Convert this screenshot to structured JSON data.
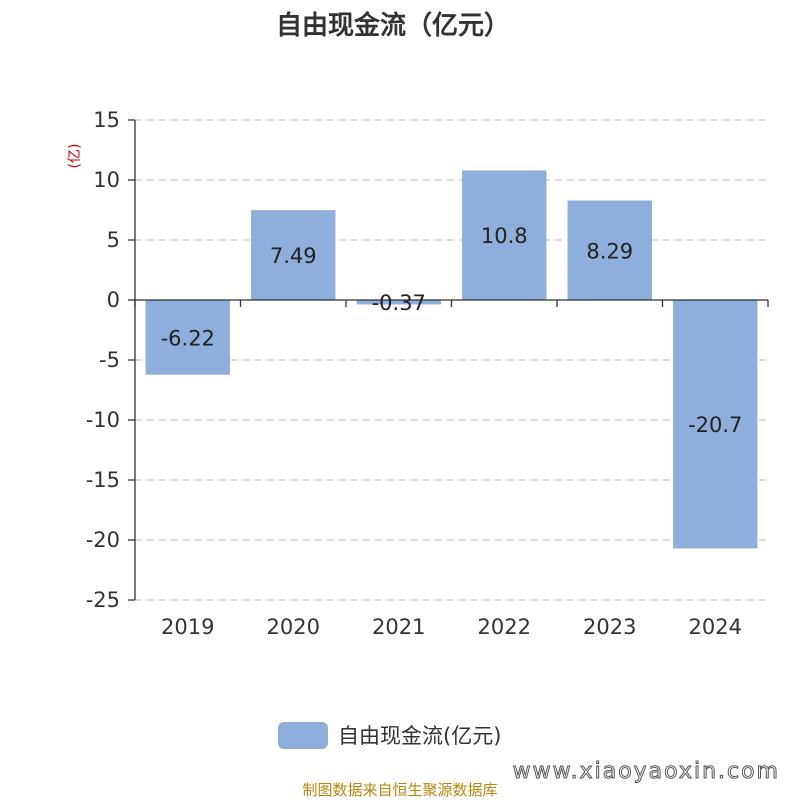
{
  "chart_data": {
    "type": "bar",
    "title": "自由现金流（亿元）",
    "unit_label": "(亿)",
    "categories": [
      "2019",
      "2020",
      "2021",
      "2022",
      "2023",
      "2024"
    ],
    "series": [
      {
        "name": "自由现金流(亿元)",
        "values": [
          -6.22,
          7.49,
          -0.37,
          10.8,
          8.29,
          -20.7
        ],
        "color": "#8eaedb"
      }
    ],
    "data_labels": [
      "-6.22",
      "7.49",
      "-0.37",
      "10.8",
      "8.29",
      "-20.7"
    ],
    "ylim": [
      -25,
      15
    ],
    "yticks": [
      15,
      10,
      5,
      0,
      -5,
      -10,
      -15,
      -20,
      -25
    ],
    "grid": true,
    "legend_position": "bottom"
  },
  "footer": {
    "source": "制图数据来自恒生聚源数据库",
    "watermark": "www.xiaoyaoxin.com"
  }
}
